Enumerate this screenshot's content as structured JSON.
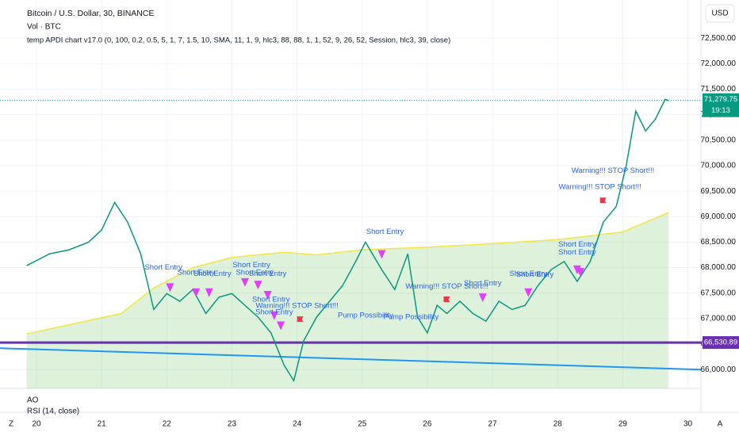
{
  "header": {
    "title": "Bitcoin / U.S. Dollar, 30, BINANCE",
    "volume": "Vol · BTC",
    "indicator": "temp APDI chart v17.0 (0, 100, 0.2, 0.5, 5, 1, 7, 1.5, 10, SMA, 11, 1, 9, hlc3, 88, 88, 1, 1, 52, 9, 26, 52, Session, hlc3, 39, close)",
    "currency": "USD"
  },
  "panes": {
    "ao": "AO",
    "rsi": "RSI (14, close)",
    "left_button": "Z",
    "right_button": "A"
  },
  "chart_data": {
    "type": "line",
    "x": [
      19.85,
      20.2,
      20.5,
      20.8,
      21.0,
      21.2,
      21.4,
      21.6,
      21.8,
      22.0,
      22.2,
      22.4,
      22.6,
      22.8,
      23.0,
      23.2,
      23.4,
      23.6,
      23.8,
      23.95,
      24.1,
      24.3,
      24.5,
      24.7,
      24.9,
      25.05,
      25.3,
      25.5,
      25.7,
      25.85,
      26.0,
      26.15,
      26.3,
      26.5,
      26.7,
      26.9,
      27.1,
      27.3,
      27.5,
      27.7,
      27.9,
      28.1,
      28.3,
      28.5,
      28.7,
      28.9,
      29.05,
      29.2,
      29.35,
      29.5,
      29.65,
      29.7
    ],
    "series": [
      {
        "color": "#089981",
        "values": [
          68040,
          68270,
          68350,
          68500,
          68740,
          69280,
          68890,
          68270,
          67180,
          67490,
          67340,
          67570,
          67100,
          67420,
          67490,
          67260,
          67030,
          66720,
          66090,
          65780,
          66560,
          67030,
          67340,
          67650,
          68120,
          68500,
          67960,
          67570,
          68270,
          67030,
          66720,
          67260,
          67100,
          67340,
          67100,
          66950,
          67340,
          67180,
          67260,
          67650,
          67960,
          68120,
          67730,
          68120,
          68890,
          69200,
          69980,
          71070,
          70680,
          70910,
          71300,
          71279.75
        ]
      }
    ],
    "band": {
      "color": "#f5e642",
      "fill": "rgba(120,200,110,0.25)",
      "x": [
        19.85,
        21.3,
        21.8,
        22.4,
        23.0,
        23.8,
        24.3,
        25.0,
        26.0,
        27.0,
        28.0,
        29.0,
        29.7
      ],
      "values": [
        66700,
        67100,
        67600,
        68000,
        68200,
        68300,
        68250,
        68350,
        68400,
        68470,
        68550,
        68700,
        69080
      ]
    },
    "level": {
      "value": 66530.89,
      "label": "66,530.89",
      "color": "#6a2fb3"
    },
    "trendline": {
      "color": "#2196f3",
      "x": [
        19.44,
        30.2
      ],
      "values": [
        66420,
        66000
      ]
    },
    "last_price": {
      "value": 71279.75,
      "label": "71,279.75",
      "countdown": "19:13",
      "color": "#089981"
    },
    "markers": {
      "color": "#e040fb",
      "x": [
        22.05,
        22.45,
        22.65,
        23.2,
        23.4,
        23.55,
        23.65,
        23.75,
        25.3,
        26.85,
        27.55,
        28.3,
        28.35
      ],
      "values": [
        67600,
        67500,
        67500,
        67700,
        67650,
        67450,
        67050,
        66850,
        68250,
        67400,
        67500,
        67950,
        67900
      ]
    },
    "flags": {
      "color": "#f23645",
      "x": [
        24.0,
        26.25,
        28.65
      ],
      "values": [
        66950,
        67340,
        69280
      ]
    },
    "annotations": [
      {
        "text": "Short Entry",
        "x": 21.95,
        "y": 68000
      },
      {
        "text": "Short Entry",
        "x": 22.45,
        "y": 67900
      },
      {
        "text": "Short Entry",
        "x": 22.7,
        "y": 67880
      },
      {
        "text": "Short Entry",
        "x": 23.3,
        "y": 68050
      },
      {
        "text": "Short Entry",
        "x": 23.35,
        "y": 67900
      },
      {
        "text": "Short Entry",
        "x": 23.55,
        "y": 67880
      },
      {
        "text": "Short Entry",
        "x": 23.6,
        "y": 67370
      },
      {
        "text": "Short Entry",
        "x": 23.65,
        "y": 67120
      },
      {
        "text": "Warning!!! STOP Short!!!",
        "x": 24.0,
        "y": 67250
      },
      {
        "text": "Short Entry",
        "x": 25.35,
        "y": 68700
      },
      {
        "text": "Pump Possibility",
        "x": 25.05,
        "y": 67060
      },
      {
        "text": "Pump Possibility",
        "x": 25.75,
        "y": 67030
      },
      {
        "text": "Warning!!! STOP Short!!!",
        "x": 26.3,
        "y": 67630
      },
      {
        "text": "Short Entry",
        "x": 26.85,
        "y": 67690
      },
      {
        "text": "Short Entry",
        "x": 27.55,
        "y": 67880
      },
      {
        "text": "Short Entry",
        "x": 27.65,
        "y": 67860
      },
      {
        "text": "Short Entry",
        "x": 28.3,
        "y": 68450
      },
      {
        "text": "Short Entry",
        "x": 28.3,
        "y": 68300
      },
      {
        "text": "Warning!!! STOP Short!!!",
        "x": 28.65,
        "y": 69580
      },
      {
        "text": "Warning!!! STOP Short!!!",
        "x": 28.85,
        "y": 69900
      }
    ],
    "xlim": [
      19.44,
      30.2
    ],
    "xticks": [
      20,
      21,
      22,
      23,
      24,
      25,
      26,
      27,
      28,
      29,
      30
    ],
    "ylim": [
      65630,
      73250
    ],
    "yticks": [
      {
        "value": 66000,
        "label": "66,000.00"
      },
      {
        "value": 66500,
        "label": "66,500.00"
      },
      {
        "value": 67000,
        "label": "67,000.00"
      },
      {
        "value": 67500,
        "label": "67,500.00"
      },
      {
        "value": 68000,
        "label": "68,000.00"
      },
      {
        "value": 68500,
        "label": "68,500.00"
      },
      {
        "value": 69000,
        "label": "69,000.00"
      },
      {
        "value": 69500,
        "label": "69,500.00"
      },
      {
        "value": 70000,
        "label": "70,000.00"
      },
      {
        "value": 70500,
        "label": "70,500.00"
      },
      {
        "value": 71000,
        "label": "71,000.00"
      },
      {
        "value": 71500,
        "label": "71,500.00"
      },
      {
        "value": 72000,
        "label": "72,000.00"
      },
      {
        "value": 72500,
        "label": "72,500.00"
      }
    ],
    "grid": true
  }
}
